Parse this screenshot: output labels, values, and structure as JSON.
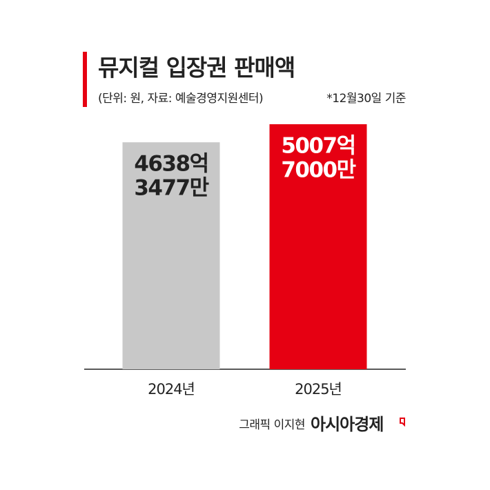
{
  "chart_data": {
    "type": "bar",
    "title": "뮤지컬 입장권 판매액",
    "subtitle": "(단위: 원, 자료: 예술경영지원센터)",
    "note": "*12월30일 기준",
    "categories": [
      "2024년",
      "2025년"
    ],
    "values": [
      4638.3477,
      5007.7
    ],
    "value_labels": [
      [
        "4638억",
        "3477만"
      ],
      [
        "5007억",
        "7000만"
      ]
    ],
    "colors": [
      "#c8c8c8",
      "#e60012"
    ],
    "label_colors": [
      "#222222",
      "#ffffff"
    ]
  },
  "footer": {
    "credit": "그래픽 이지현",
    "brand": "아시아경제"
  }
}
